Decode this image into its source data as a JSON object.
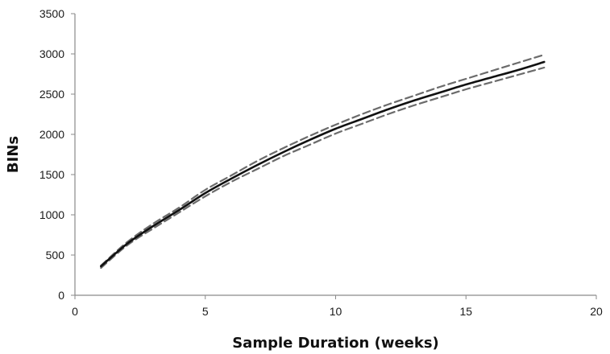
{
  "chart_data": {
    "type": "line",
    "title": "",
    "xlabel": "Sample Duration (weeks)",
    "ylabel": "BINs",
    "xlim": [
      0,
      20
    ],
    "ylim": [
      0,
      3500
    ],
    "x_ticks": [
      0,
      5,
      10,
      15,
      20
    ],
    "y_ticks": [
      0,
      500,
      1000,
      1500,
      2000,
      2500,
      3000,
      3500
    ],
    "x_tick_labels": [
      "0",
      "5",
      "10",
      "15",
      "20"
    ],
    "y_tick_labels": [
      "0",
      "500",
      "1000",
      "1500",
      "2000",
      "2500",
      "3000",
      "3500"
    ],
    "grid": false,
    "legend": "none",
    "x": [
      1,
      2,
      3,
      4,
      5,
      6,
      7,
      8,
      9,
      10,
      11,
      12,
      13,
      14,
      15,
      16,
      17,
      18
    ],
    "series": [
      {
        "style": "solid",
        "color": "#111111",
        "values": [
          360,
          640,
          860,
          1060,
          1270,
          1450,
          1620,
          1780,
          1930,
          2070,
          2190,
          2310,
          2420,
          2520,
          2620,
          2710,
          2800,
          2900
        ]
      },
      {
        "style": "dashed",
        "color": "#6b6b6b",
        "values": [
          370,
          660,
          890,
          1090,
          1310,
          1490,
          1670,
          1830,
          1980,
          2120,
          2250,
          2370,
          2480,
          2590,
          2690,
          2790,
          2890,
          2990
        ]
      },
      {
        "style": "dashed",
        "color": "#6b6b6b",
        "values": [
          340,
          620,
          830,
          1030,
          1230,
          1410,
          1570,
          1730,
          1870,
          2010,
          2130,
          2250,
          2360,
          2460,
          2560,
          2650,
          2740,
          2830
        ]
      }
    ]
  }
}
